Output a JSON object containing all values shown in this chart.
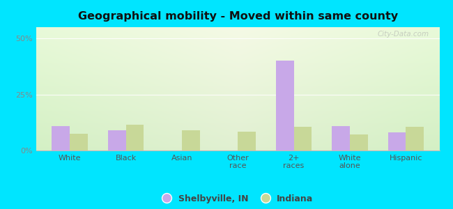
{
  "title": "Geographical mobility - Moved within same county",
  "categories": [
    "White",
    "Black",
    "Asian",
    "Other\nrace",
    "2+\nraces",
    "White\nalone",
    "Hispanic"
  ],
  "shelbyville_values": [
    11.0,
    9.0,
    0.0,
    0.0,
    40.0,
    11.0,
    8.0
  ],
  "indiana_values": [
    7.5,
    11.5,
    9.0,
    8.5,
    10.5,
    7.0,
    10.5
  ],
  "shelbyville_color": "#c8a8e8",
  "indiana_color": "#c8d898",
  "outer_bg": "#00e5ff",
  "ylim": [
    0,
    55
  ],
  "yticks": [
    0,
    25,
    50
  ],
  "ytick_labels": [
    "0%",
    "25%",
    "50%"
  ],
  "legend_labels": [
    "Shelbyville, IN",
    "Indiana"
  ],
  "watermark": "City-Data.com",
  "bar_width": 0.32,
  "grad_left": "#d0e8c0",
  "grad_right": "#c8e8d0",
  "grad_top": "#f0f8e8",
  "grad_bottom": "#c8e8c8"
}
